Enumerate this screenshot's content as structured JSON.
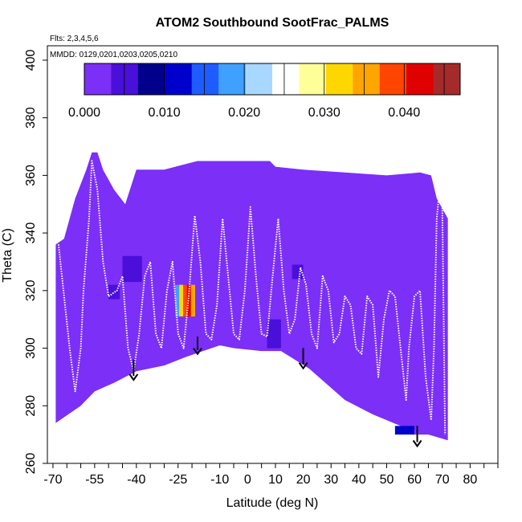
{
  "chart_data": {
    "type": "heatmap",
    "title": "ATOM2 Southbound SootFrac_PALMS",
    "flights_label": "Flts: 2,3,4,5,6",
    "dates_label": "MMDD: 0129,0201,0203,0205,0210",
    "xlabel": "Latitude (deg N)",
    "ylabel": "Theta (C)",
    "xlim": [
      -72,
      90
    ],
    "ylim": [
      260,
      405
    ],
    "x_ticks": [
      -70,
      -65,
      -60,
      -55,
      -50,
      -45,
      -40,
      -35,
      -30,
      -25,
      -20,
      -15,
      -10,
      -5,
      0,
      5,
      10,
      15,
      20,
      25,
      30,
      35,
      40,
      45,
      50,
      55,
      60,
      65,
      70,
      75,
      80,
      85,
      90
    ],
    "x_tick_labels": [
      "-70",
      "-55",
      "-40",
      "-25",
      "-10",
      "0",
      "10",
      "20",
      "30",
      "40",
      "50",
      "60",
      "70",
      "80"
    ],
    "x_tick_label_values": [
      -70,
      -55,
      -40,
      -25,
      -10,
      0,
      10,
      20,
      30,
      40,
      50,
      60,
      70,
      80
    ],
    "y_ticks": [
      260,
      280,
      300,
      320,
      340,
      360,
      380,
      400
    ],
    "y_tick_labels": [
      "260",
      "280",
      "300",
      "320",
      "340",
      "360",
      "380",
      "400"
    ],
    "colorbar": {
      "min": 0.0,
      "max": 0.047,
      "tick_values": [
        0.0,
        0.01,
        0.02,
        0.03,
        0.04
      ],
      "tick_labels": [
        "0.000",
        "0.010",
        "0.020",
        "0.030",
        "0.040"
      ],
      "colors": [
        "#7b2ff7",
        "#4a0fd8",
        "#00008b",
        "#0000cd",
        "#1e5cff",
        "#3fa0ff",
        "#a8d8ff",
        "#ffffff",
        "#ffff99",
        "#ffd700",
        "#ffa500",
        "#ff4500",
        "#e00000",
        "#a52a2a"
      ]
    },
    "background_value": 0.0,
    "floor_boundary": [
      [
        -69,
        274
      ],
      [
        -60,
        280
      ],
      [
        -55,
        285
      ],
      [
        -48,
        288
      ],
      [
        -40,
        292
      ],
      [
        -30,
        294
      ],
      [
        -22,
        297
      ],
      [
        -10,
        301
      ],
      [
        -5,
        300
      ],
      [
        5,
        299
      ],
      [
        12,
        299
      ],
      [
        22,
        293
      ],
      [
        35,
        282
      ],
      [
        45,
        277
      ],
      [
        55,
        273
      ],
      [
        65,
        270
      ],
      [
        72,
        268
      ]
    ],
    "top_boundary": [
      [
        -69,
        336
      ],
      [
        -66,
        338
      ],
      [
        -64,
        345
      ],
      [
        -62,
        352
      ],
      [
        -58,
        362
      ],
      [
        -56,
        368
      ],
      [
        -54,
        368
      ],
      [
        -52,
        362
      ],
      [
        -48,
        355
      ],
      [
        -44,
        350
      ],
      [
        -40,
        362
      ],
      [
        -30,
        362
      ],
      [
        -22,
        364
      ],
      [
        -18,
        365
      ],
      [
        -8,
        365
      ],
      [
        8,
        365
      ],
      [
        10,
        363
      ],
      [
        20,
        362
      ],
      [
        35,
        361
      ],
      [
        50,
        360
      ],
      [
        62,
        361
      ],
      [
        66,
        360
      ],
      [
        68,
        352
      ],
      [
        72,
        345
      ]
    ],
    "cells": [
      {
        "x0": -45,
        "x1": -38,
        "y0": 323,
        "y1": 332,
        "value": 0.005
      },
      {
        "x0": -50,
        "x1": -46,
        "y0": 317,
        "y1": 322,
        "value": 0.004
      },
      {
        "x0": -26,
        "x1": -19,
        "y0": 311,
        "y1": 322,
        "value": 0.03
      },
      {
        "x0": 7,
        "x1": 12,
        "y0": 300,
        "y1": 310,
        "value": 0.004
      },
      {
        "x0": 16,
        "x1": 20,
        "y0": 324,
        "y1": 329,
        "value": 0.005
      },
      {
        "x0": 16,
        "x1": 20,
        "y0": 316,
        "y1": 321,
        "value": 0.003
      },
      {
        "x0": 30,
        "x1": 34,
        "y0": 310,
        "y1": 316,
        "value": 0.002
      },
      {
        "x0": 42,
        "x1": 46,
        "y0": 312,
        "y1": 316,
        "value": 0.002
      },
      {
        "x0": 55,
        "x1": 60,
        "y0": 281,
        "y1": 285,
        "value": 0.003
      },
      {
        "x0": 53,
        "x1": 60,
        "y0": 270,
        "y1": 273,
        "value": 0.013
      },
      {
        "x0": 60,
        "x1": 70,
        "y0": 270,
        "y1": 272,
        "value": 0.003
      },
      {
        "x0": -63,
        "x1": -59,
        "y0": 330,
        "y1": 334,
        "value": 0.002
      }
    ],
    "arrows": [
      {
        "x": -41,
        "y_top": 296,
        "y_bottom": 289
      },
      {
        "x": -18,
        "y_top": 304,
        "y_bottom": 298
      },
      {
        "x": 20,
        "y_top": 300,
        "y_bottom": 293
      },
      {
        "x": 61,
        "y_top": 273,
        "y_bottom": 266
      }
    ],
    "flight_tracks": [
      [
        [
          -68,
          336
        ],
        [
          -66,
          318
        ],
        [
          -64,
          300
        ],
        [
          -62,
          285
        ],
        [
          -60,
          300
        ],
        [
          -59,
          320
        ],
        [
          -57,
          345
        ],
        [
          -56,
          365
        ],
        [
          -54,
          355
        ],
        [
          -52,
          330
        ],
        [
          -50,
          318
        ],
        [
          -47,
          320
        ],
        [
          -45,
          325
        ],
        [
          -43,
          300
        ],
        [
          -41,
          292
        ],
        [
          -39,
          305
        ],
        [
          -37,
          325
        ],
        [
          -35,
          330
        ],
        [
          -33,
          305
        ],
        [
          -31,
          300
        ],
        [
          -29,
          320
        ],
        [
          -27,
          330
        ],
        [
          -25,
          305
        ],
        [
          -23,
          300
        ],
        [
          -21,
          320
        ],
        [
          -19,
          346
        ],
        [
          -17,
          330
        ],
        [
          -15,
          305
        ],
        [
          -13,
          303
        ],
        [
          -11,
          315
        ],
        [
          -9,
          345
        ],
        [
          -7,
          325
        ],
        [
          -5,
          305
        ],
        [
          -3,
          303
        ],
        [
          -1,
          320
        ],
        [
          1,
          349
        ],
        [
          3,
          325
        ],
        [
          5,
          305
        ],
        [
          7,
          304
        ],
        [
          9,
          325
        ],
        [
          11,
          345
        ],
        [
          13,
          320
        ],
        [
          15,
          305
        ],
        [
          17,
          310
        ],
        [
          19,
          328
        ],
        [
          21,
          322
        ],
        [
          23,
          305
        ],
        [
          25,
          300
        ],
        [
          27,
          325
        ],
        [
          29,
          320
        ],
        [
          31,
          302
        ],
        [
          33,
          305
        ],
        [
          35,
          318
        ],
        [
          37,
          315
        ],
        [
          39,
          300
        ],
        [
          41,
          298
        ],
        [
          43,
          318
        ],
        [
          45,
          315
        ],
        [
          47,
          290
        ],
        [
          49,
          310
        ],
        [
          51,
          320
        ],
        [
          53,
          318
        ],
        [
          55,
          300
        ],
        [
          57,
          282
        ],
        [
          58,
          300
        ],
        [
          60,
          318
        ],
        [
          62,
          320
        ],
        [
          64,
          290
        ],
        [
          66,
          275
        ],
        [
          67,
          300
        ],
        [
          68,
          345
        ],
        [
          69,
          355
        ],
        [
          70,
          350
        ],
        [
          71,
          270
        ]
      ]
    ]
  }
}
